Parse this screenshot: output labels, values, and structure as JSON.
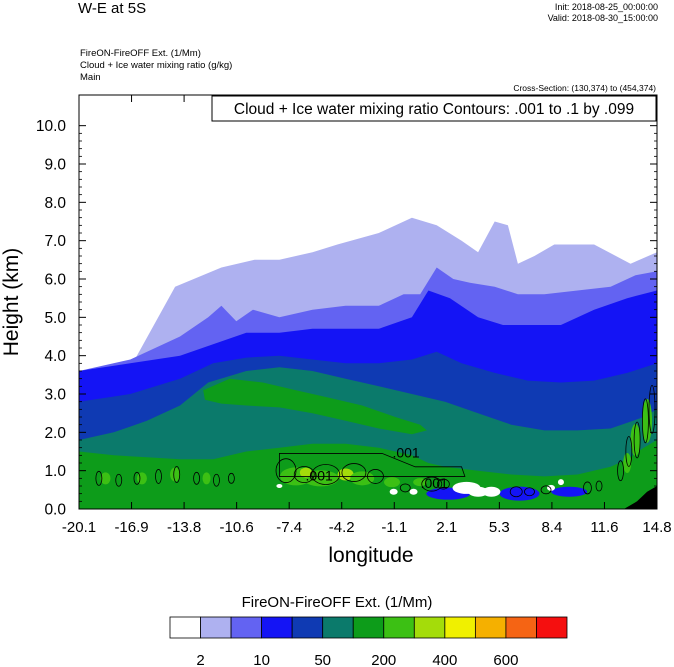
{
  "header": {
    "title": "W-E at 5S",
    "init": "Init: 2018-08-25_00:00:00",
    "valid": "Valid: 2018-08-30_15:00:00",
    "field_line": "FireON-FireOFF Ext.   (1/Mm)",
    "contour_field_line": "Cloud + Ice water mixing ratio   (g/kg)",
    "domain_line": "Main",
    "cross_section": "Cross-Section: (130,374) to (454,374)",
    "contour_info": "Cloud + Ice water mixing ratio Contours: .001 to .1 by .099"
  },
  "chart_data": {
    "type": "heatmap",
    "xlabel": "longitude",
    "ylabel": "Height (km)",
    "xlim": [
      -20.1,
      14.8
    ],
    "ylim": [
      0.0,
      10.8
    ],
    "x_ticks": [
      "-20.1",
      "-16.9",
      "-13.8",
      "-10.6",
      "-7.4",
      "-4.2",
      "-1.1",
      "2.1",
      "5.3",
      "8.4",
      "11.6",
      "14.8"
    ],
    "y_ticks": [
      "0.0",
      "1.0",
      "2.0",
      "3.0",
      "4.0",
      "5.0",
      "6.0",
      "7.0",
      "8.0",
      "9.0",
      "10.0"
    ],
    "y_tick_values": [
      0,
      1,
      2,
      3,
      4,
      5,
      6,
      7,
      8,
      9,
      10
    ],
    "colorbar": {
      "title": "FireON-FireOFF Ext.  (1/Mm)",
      "colors": [
        "#ffffff",
        "#aeb1f0",
        "#6363f2",
        "#1414f5",
        "#0f3ab3",
        "#0b7a6b",
        "#0d9c1a",
        "#3cc014",
        "#a4dc0a",
        "#f0f000",
        "#f5b000",
        "#f56414",
        "#f50f0f"
      ],
      "labels": [
        "2",
        "10",
        "50",
        "200",
        "400",
        "600"
      ]
    },
    "contour_labels": [
      ".001",
      ".001",
      ".001"
    ],
    "field_layers": [
      {
        "bin": 1,
        "color": "#aeb1f0",
        "top_km": [
          [
            -20.1,
            0
          ],
          [
            -17.5,
            3.3
          ],
          [
            -14.3,
            5.8
          ],
          [
            -11.5,
            6.3
          ],
          [
            -9.5,
            6.5
          ],
          [
            -8,
            6.5
          ],
          [
            -6,
            6.7
          ],
          [
            -4.5,
            6.9
          ],
          [
            -2,
            7.2
          ],
          [
            0,
            7.6
          ],
          [
            1.5,
            7.4
          ],
          [
            3,
            7.0
          ],
          [
            4,
            6.7
          ],
          [
            5,
            7.5
          ],
          [
            5.8,
            7.4
          ],
          [
            6.4,
            6.4
          ],
          [
            7.4,
            6.6
          ],
          [
            8.6,
            6.9
          ],
          [
            9.6,
            6.9
          ],
          [
            11,
            6.9
          ],
          [
            13.2,
            6.4
          ],
          [
            14.8,
            6.7
          ],
          [
            14.8,
            0
          ]
        ]
      },
      {
        "bin": 2,
        "color": "#6363f2",
        "top_km": [
          [
            -20.1,
            0
          ],
          [
            -20.1,
            3.6
          ],
          [
            -17,
            3.9
          ],
          [
            -14,
            4.5
          ],
          [
            -12.3,
            5.0
          ],
          [
            -11.5,
            5.3
          ],
          [
            -10.6,
            4.9
          ],
          [
            -9.6,
            5.2
          ],
          [
            -8,
            5.0
          ],
          [
            -6,
            5.2
          ],
          [
            -4,
            5.3
          ],
          [
            -2,
            5.3
          ],
          [
            -0.5,
            5.6
          ],
          [
            0.5,
            5.6
          ],
          [
            1.5,
            6.3
          ],
          [
            2.5,
            6.0
          ],
          [
            3.5,
            5.9
          ],
          [
            5,
            5.8
          ],
          [
            6.4,
            5.6
          ],
          [
            8,
            5.6
          ],
          [
            10,
            5.7
          ],
          [
            12,
            5.8
          ],
          [
            13.5,
            6.1
          ],
          [
            14.8,
            6.2
          ],
          [
            14.8,
            0
          ]
        ]
      },
      {
        "bin": 3,
        "color": "#1414f5",
        "top_km": [
          [
            -20.1,
            0
          ],
          [
            -20.1,
            3.6
          ],
          [
            -17,
            3.8
          ],
          [
            -14,
            4.0
          ],
          [
            -12,
            4.3
          ],
          [
            -10,
            4.6
          ],
          [
            -8,
            4.6
          ],
          [
            -6,
            4.7
          ],
          [
            -4,
            4.7
          ],
          [
            -2,
            4.7
          ],
          [
            0,
            5.0
          ],
          [
            1,
            5.7
          ],
          [
            2.3,
            5.5
          ],
          [
            4,
            5.0
          ],
          [
            5.5,
            4.8
          ],
          [
            7,
            4.8
          ],
          [
            9,
            4.8
          ],
          [
            11,
            5.2
          ],
          [
            13,
            5.5
          ],
          [
            14.8,
            5.7
          ],
          [
            14.8,
            0
          ]
        ]
      },
      {
        "bin": 4,
        "color": "#0f3ab3",
        "top_km": [
          [
            -20.1,
            0
          ],
          [
            -20.1,
            2.8
          ],
          [
            -17,
            3.0
          ],
          [
            -14,
            3.4
          ],
          [
            -12,
            3.8
          ],
          [
            -10,
            3.95
          ],
          [
            -8,
            4.0
          ],
          [
            -6,
            3.9
          ],
          [
            -4,
            3.8
          ],
          [
            -2,
            3.8
          ],
          [
            0,
            3.9
          ],
          [
            1.5,
            4.1
          ],
          [
            3,
            3.8
          ],
          [
            5,
            3.55
          ],
          [
            7,
            3.35
          ],
          [
            9,
            3.3
          ],
          [
            11,
            3.35
          ],
          [
            13,
            3.55
          ],
          [
            14.8,
            3.8
          ],
          [
            14.8,
            0
          ]
        ]
      },
      {
        "bin": 5,
        "color": "#0b7a6b",
        "top_km": [
          [
            -20.1,
            0
          ],
          [
            -20.1,
            1.8
          ],
          [
            -18,
            2.0
          ],
          [
            -16,
            2.3
          ],
          [
            -14,
            2.7
          ],
          [
            -12.3,
            3.3
          ],
          [
            -10,
            3.6
          ],
          [
            -8,
            3.7
          ],
          [
            -6,
            3.6
          ],
          [
            -4,
            3.4
          ],
          [
            -2,
            3.2
          ],
          [
            0,
            3.0
          ],
          [
            2,
            2.8
          ],
          [
            4,
            2.5
          ],
          [
            6,
            2.2
          ],
          [
            8,
            2.05
          ],
          [
            10,
            2.05
          ],
          [
            12,
            2.1
          ],
          [
            14,
            2.4
          ],
          [
            14.8,
            2.6
          ],
          [
            14.8,
            0
          ]
        ]
      },
      {
        "bin": 6,
        "color": "#0d9c1a",
        "top_km": [
          [
            -20.1,
            0
          ],
          [
            -20.1,
            1.5
          ],
          [
            -18,
            1.4
          ],
          [
            -16,
            1.35
          ],
          [
            -14,
            1.3
          ],
          [
            -12,
            1.3
          ],
          [
            -10,
            1.5
          ],
          [
            -8,
            1.6
          ],
          [
            -6,
            1.7
          ],
          [
            -4,
            1.7
          ],
          [
            -2,
            1.6
          ],
          [
            0,
            1.4
          ],
          [
            1,
            1.2
          ],
          [
            2,
            1.1
          ],
          [
            4,
            1.0
          ],
          [
            6,
            0.9
          ],
          [
            8,
            0.85
          ],
          [
            10,
            0.9
          ],
          [
            12,
            1.1
          ],
          [
            13,
            1.3
          ],
          [
            14,
            1.6
          ],
          [
            14.8,
            1.8
          ],
          [
            14.8,
            0
          ]
        ]
      }
    ],
    "green_tongue_km": [
      [
        -12.6,
        3.1
      ],
      [
        -11,
        3.4
      ],
      [
        -9,
        3.3
      ],
      [
        -7,
        3.1
      ],
      [
        -5,
        2.9
      ],
      [
        -3,
        2.7
      ],
      [
        -1,
        2.4
      ],
      [
        0.5,
        2.2
      ],
      [
        0.9,
        2.05
      ],
      [
        0,
        1.95
      ],
      [
        -2,
        2.1
      ],
      [
        -4,
        2.3
      ],
      [
        -6,
        2.5
      ],
      [
        -8,
        2.65
      ],
      [
        -10,
        2.7
      ],
      [
        -11.5,
        2.75
      ],
      [
        -12.5,
        2.85
      ]
    ]
  }
}
